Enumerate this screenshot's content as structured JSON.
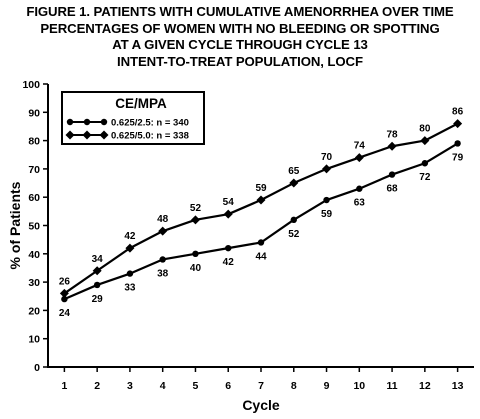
{
  "title_lines": [
    "FIGURE 1. PATIENTS WITH CUMULATIVE AMENORRHEA OVER TIME",
    "PERCENTAGES OF WOMEN WITH NO BLEEDING OR SPOTTING",
    "AT A GIVEN CYCLE THROUGH CYCLE 13",
    "INTENT-TO-TREAT POPULATION, LOCF"
  ],
  "chart_data": {
    "type": "line",
    "title": "FIGURE 1. PATIENTS WITH CUMULATIVE AMENORRHEA OVER TIME",
    "xlabel": "Cycle",
    "ylabel": "% of Patients",
    "x": [
      1,
      2,
      3,
      4,
      5,
      6,
      7,
      8,
      9,
      10,
      11,
      12,
      13
    ],
    "xlim": [
      0.5,
      13.5
    ],
    "ylim": [
      0,
      100
    ],
    "yticks": [
      0,
      10,
      20,
      30,
      40,
      50,
      60,
      70,
      80,
      90,
      100
    ],
    "grid": false,
    "legend": {
      "title": "CE/MPA",
      "placement": "top-left",
      "entries": [
        "0.625/2.5: n = 340",
        "0.625/5.0: n = 338"
      ]
    },
    "series": [
      {
        "name": "0.625/2.5: n = 340",
        "marker": "circle",
        "label_position": "below",
        "values": [
          24,
          29,
          33,
          38,
          40,
          42,
          44,
          52,
          59,
          63,
          68,
          72,
          79
        ]
      },
      {
        "name": "0.625/5.0: n = 338",
        "marker": "diamond",
        "label_position": "above",
        "values": [
          26,
          34,
          42,
          48,
          52,
          54,
          59,
          65,
          70,
          74,
          78,
          80,
          86
        ]
      }
    ]
  }
}
